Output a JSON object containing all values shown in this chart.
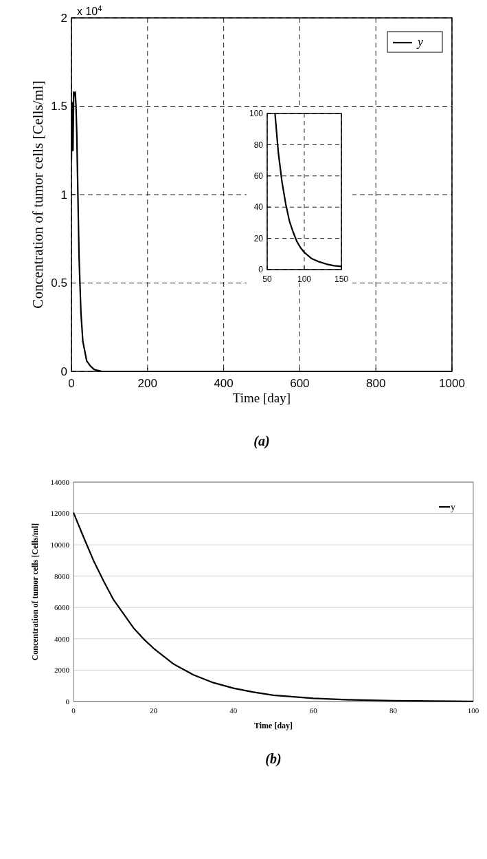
{
  "chart_data": [
    {
      "type": "line",
      "title": "(a)",
      "xlabel": "Time [day]",
      "ylabel": "Concentration of tumor cells [Cells/ml]",
      "annotations": [
        "x 10$^{4}$"
      ],
      "xlim": [
        0,
        1000
      ],
      "ylim": [
        0,
        2
      ],
      "xticks": [
        0,
        200,
        400,
        600,
        800,
        1000
      ],
      "yticks": [
        0,
        0.5,
        1,
        1.5,
        2
      ],
      "grid": true,
      "legend": "top right",
      "series": [
        {
          "name": "y",
          "color": "#000000",
          "x": [
            0,
            2,
            4,
            6,
            8,
            10,
            12,
            14,
            17,
            20,
            25,
            30,
            40,
            50,
            60,
            80,
            100,
            200,
            400,
            600,
            800,
            1000
          ],
          "values": [
            1.2,
            1.52,
            1.25,
            1.58,
            1.56,
            1.58,
            1.5,
            1.35,
            1.0,
            0.65,
            0.33,
            0.17,
            0.06,
            0.03,
            0.01,
            0,
            0,
            0,
            0,
            0,
            0,
            0
          ]
        }
      ]
    },
    {
      "type": "line",
      "xlim": [
        50,
        150
      ],
      "ylim": [
        0,
        100
      ],
      "xticks": [
        50,
        100,
        150
      ],
      "yticks": [
        0,
        20,
        40,
        60,
        80,
        100
      ],
      "grid": true,
      "series": [
        {
          "color": "#000000",
          "x": [
            60.5,
            65,
            70,
            75,
            80,
            85,
            90,
            95,
            100,
            110,
            120,
            130,
            140,
            150
          ],
          "values": [
            100,
            75,
            56,
            42,
            31,
            24,
            18,
            14,
            11,
            7,
            5,
            3.5,
            2.5,
            2
          ]
        }
      ]
    },
    {
      "type": "line",
      "title": "(b)",
      "xlabel": "Time [day]",
      "ylabel": "Concentration of tumor cells [Cells/ml]",
      "xlim": [
        0,
        100
      ],
      "ylim": [
        0,
        14000
      ],
      "xticks": [
        0,
        20,
        40,
        60,
        80,
        100
      ],
      "yticks": [
        0,
        2000,
        4000,
        6000,
        8000,
        10000,
        12000,
        14000
      ],
      "grid": "y",
      "legend": "top right",
      "series": [
        {
          "name": "y",
          "color": "#000000",
          "x": [
            0,
            2.5,
            5,
            7.5,
            10,
            12.5,
            15,
            17.5,
            20,
            25,
            30,
            35,
            40,
            45,
            50,
            60,
            70,
            80,
            90,
            100
          ],
          "values": [
            12050,
            10500,
            9000,
            7700,
            6500,
            5600,
            4700,
            4000,
            3400,
            2400,
            1700,
            1200,
            850,
            600,
            400,
            200,
            100,
            50,
            30,
            10
          ]
        }
      ]
    }
  ]
}
